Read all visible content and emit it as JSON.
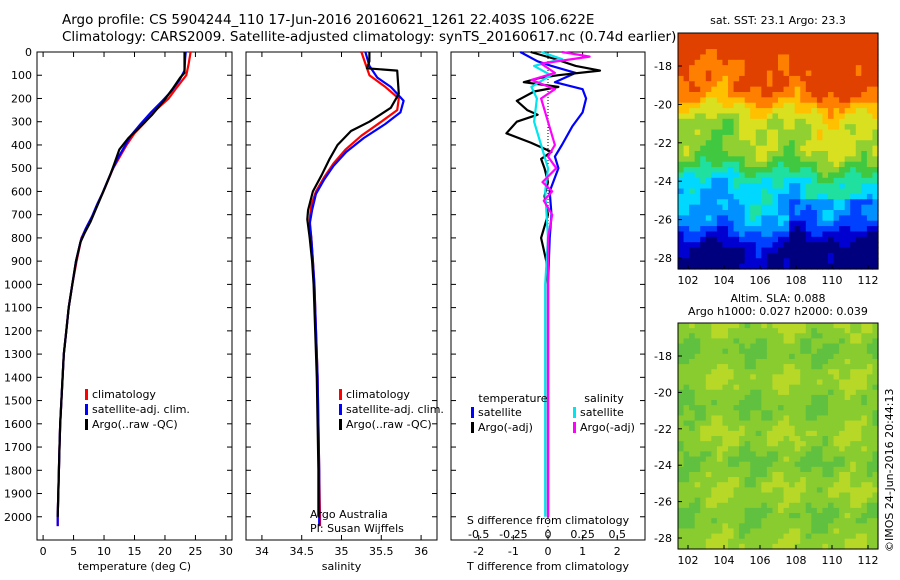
{
  "header": {
    "line1": "Argo profile: CS 5904244_110 17-Jun-2016 20160621_1261 22.403S 106.622E",
    "line2": "Climatology: CARS2009. Satellite-adjusted climatology: synTS_20160617.nc (0.74d earlier)"
  },
  "stamp": "©IMOS 24-Jun-2016 20:44:13",
  "colors": {
    "climatology": "#ff0000",
    "satellite": "#0000ff",
    "argo": "#000000",
    "sat_diff": "#00e5ee",
    "argo_adj": "#ff00ff"
  },
  "chart_data": [
    {
      "type": "line",
      "id": "temperature",
      "xlabel": "temperature (deg C)",
      "xlim": [
        -1,
        31
      ],
      "xticks": [
        0,
        5,
        10,
        15,
        20,
        25,
        30
      ],
      "ylim": [
        2100,
        0
      ],
      "yticks": [
        0,
        100,
        200,
        300,
        400,
        500,
        600,
        700,
        800,
        900,
        1000,
        1100,
        1200,
        1300,
        1400,
        1500,
        1600,
        1700,
        1800,
        1900,
        2000
      ],
      "series": [
        {
          "name": "climatology",
          "color": "#ff0000",
          "points": [
            [
              24.2,
              0
            ],
            [
              23.9,
              50
            ],
            [
              23.5,
              100
            ],
            [
              22.0,
              150
            ],
            [
              20.6,
              200
            ],
            [
              18.5,
              250
            ],
            [
              16.8,
              300
            ],
            [
              15.0,
              350
            ],
            [
              13.7,
              400
            ],
            [
              12.6,
              450
            ],
            [
              11.5,
              500
            ],
            [
              10.7,
              550
            ],
            [
              9.9,
              600
            ],
            [
              9.0,
              650
            ],
            [
              8.2,
              700
            ],
            [
              7.2,
              750
            ],
            [
              6.3,
              800
            ],
            [
              5.5,
              900
            ],
            [
              4.8,
              1000
            ],
            [
              4.2,
              1100
            ],
            [
              3.8,
              1200
            ],
            [
              3.4,
              1300
            ],
            [
              3.2,
              1400
            ],
            [
              3.0,
              1500
            ],
            [
              2.8,
              1600
            ],
            [
              2.7,
              1700
            ],
            [
              2.6,
              1800
            ],
            [
              2.5,
              1900
            ],
            [
              2.4,
              2000
            ],
            [
              2.4,
              2040
            ]
          ]
        },
        {
          "name": "satellite-adj. clim.",
          "color": "#0000ff",
          "points": [
            [
              23.4,
              0
            ],
            [
              23.3,
              30
            ],
            [
              23.2,
              80
            ],
            [
              22.4,
              120
            ],
            [
              21.0,
              170
            ],
            [
              19.6,
              210
            ],
            [
              17.7,
              260
            ],
            [
              16.0,
              310
            ],
            [
              14.4,
              360
            ],
            [
              13.3,
              410
            ],
            [
              12.2,
              460
            ],
            [
              11.3,
              510
            ],
            [
              10.5,
              560
            ],
            [
              9.7,
              610
            ],
            [
              8.8,
              660
            ],
            [
              8.0,
              710
            ],
            [
              7.0,
              760
            ],
            [
              6.2,
              810
            ],
            [
              5.4,
              900
            ],
            [
              4.8,
              1000
            ],
            [
              4.2,
              1100
            ],
            [
              3.8,
              1200
            ],
            [
              3.4,
              1300
            ],
            [
              3.2,
              1400
            ],
            [
              3.0,
              1500
            ],
            [
              2.8,
              1600
            ],
            [
              2.7,
              1700
            ],
            [
              2.6,
              1800
            ],
            [
              2.5,
              1900
            ],
            [
              2.4,
              2000
            ],
            [
              2.4,
              2040
            ]
          ]
        },
        {
          "name": "Argo(..raw -QC)",
          "color": "#000000",
          "points": [
            [
              23.2,
              0
            ],
            [
              23.2,
              90
            ],
            [
              22.5,
              110
            ],
            [
              21.2,
              160
            ],
            [
              19.8,
              210
            ],
            [
              17.9,
              270
            ],
            [
              15.6,
              330
            ],
            [
              14.0,
              370
            ],
            [
              12.5,
              420
            ],
            [
              11.7,
              480
            ],
            [
              11.0,
              530
            ],
            [
              10.2,
              580
            ],
            [
              9.4,
              630
            ],
            [
              8.6,
              680
            ],
            [
              7.8,
              730
            ],
            [
              6.8,
              780
            ],
            [
              6.1,
              820
            ],
            [
              5.4,
              900
            ],
            [
              4.8,
              1000
            ],
            [
              4.2,
              1100
            ],
            [
              3.8,
              1200
            ],
            [
              3.4,
              1300
            ],
            [
              3.2,
              1400
            ],
            [
              3.0,
              1500
            ],
            [
              2.8,
              1600
            ],
            [
              2.7,
              1700
            ],
            [
              2.6,
              1800
            ],
            [
              2.5,
              1900
            ],
            [
              2.4,
              2000
            ]
          ]
        }
      ],
      "legend": [
        "climatology",
        "satellite-adj. clim.",
        "Argo(..raw -QC)"
      ]
    },
    {
      "type": "line",
      "id": "salinity",
      "xlabel": "salinity",
      "xlim": [
        33.8,
        36.2
      ],
      "xticks": [
        34,
        34.5,
        35,
        35.5,
        36
      ],
      "ylim": [
        2100,
        0
      ],
      "series": [
        {
          "name": "climatology",
          "color": "#ff0000",
          "points": [
            [
              35.25,
              0
            ],
            [
              35.3,
              50
            ],
            [
              35.35,
              100
            ],
            [
              35.55,
              150
            ],
            [
              35.72,
              200
            ],
            [
              35.7,
              250
            ],
            [
              35.5,
              300
            ],
            [
              35.25,
              360
            ],
            [
              35.05,
              420
            ],
            [
              34.9,
              480
            ],
            [
              34.78,
              540
            ],
            [
              34.68,
              600
            ],
            [
              34.62,
              660
            ],
            [
              34.6,
              720
            ],
            [
              34.62,
              800
            ],
            [
              34.64,
              900
            ],
            [
              34.66,
              1000
            ],
            [
              34.68,
              1200
            ],
            [
              34.7,
              1400
            ],
            [
              34.71,
              1600
            ],
            [
              34.72,
              1800
            ],
            [
              34.73,
              2000
            ],
            [
              34.73,
              2040
            ]
          ]
        },
        {
          "name": "satellite-adj. clim.",
          "color": "#0000ff",
          "points": [
            [
              35.3,
              0
            ],
            [
              35.35,
              60
            ],
            [
              35.45,
              110
            ],
            [
              35.62,
              150
            ],
            [
              35.78,
              210
            ],
            [
              35.74,
              260
            ],
            [
              35.55,
              310
            ],
            [
              35.28,
              370
            ],
            [
              35.06,
              430
            ],
            [
              34.9,
              490
            ],
            [
              34.78,
              550
            ],
            [
              34.68,
              610
            ],
            [
              34.63,
              680
            ],
            [
              34.6,
              740
            ],
            [
              34.62,
              800
            ],
            [
              34.64,
              900
            ],
            [
              34.66,
              1000
            ],
            [
              34.68,
              1200
            ],
            [
              34.7,
              1400
            ],
            [
              34.71,
              1600
            ],
            [
              34.72,
              1800
            ],
            [
              34.72,
              2000
            ],
            [
              34.72,
              2040
            ]
          ]
        },
        {
          "name": "Argo(..raw -QC)",
          "color": "#000000",
          "points": [
            [
              35.35,
              0
            ],
            [
              35.35,
              40
            ],
            [
              35.32,
              70
            ],
            [
              35.7,
              80
            ],
            [
              35.72,
              180
            ],
            [
              35.62,
              240
            ],
            [
              35.35,
              300
            ],
            [
              35.12,
              340
            ],
            [
              34.95,
              400
            ],
            [
              34.85,
              460
            ],
            [
              34.75,
              530
            ],
            [
              34.64,
              600
            ],
            [
              34.58,
              680
            ],
            [
              34.57,
              720
            ],
            [
              34.6,
              800
            ],
            [
              34.63,
              900
            ],
            [
              34.65,
              1000
            ],
            [
              34.67,
              1200
            ],
            [
              34.69,
              1400
            ],
            [
              34.7,
              1600
            ],
            [
              34.71,
              1800
            ],
            [
              34.71,
              2000
            ]
          ]
        }
      ],
      "legend": [
        "climatology",
        "satellite-adj. clim.",
        "Argo(..raw -QC)"
      ],
      "annotation": [
        "Argo Australia",
        "PI: Susan Wijffels"
      ]
    },
    {
      "type": "line",
      "id": "difference",
      "xlabel": "T difference from climatology",
      "xlim": [
        -2.8,
        2.8
      ],
      "xticks": [
        -2,
        -1,
        0,
        1,
        2
      ],
      "top_label": "S difference from climatology",
      "top_ticks": [
        "-0.5",
        "-0.25",
        "0",
        "0.25",
        "0.5"
      ],
      "top_tick_values": [
        -0.5,
        -0.25,
        0,
        0.25,
        0.5
      ],
      "s_scale": 4,
      "ylim": [
        2100,
        0
      ],
      "series": [
        {
          "name": "temperature satellite",
          "color": "#0000ff",
          "points": [
            [
              -0.8,
              0
            ],
            [
              -0.3,
              40
            ],
            [
              0.1,
              60
            ],
            [
              0.8,
              90
            ],
            [
              0.2,
              130
            ],
            [
              1.0,
              160
            ],
            [
              1.1,
              200
            ],
            [
              1.0,
              260
            ],
            [
              0.7,
              320
            ],
            [
              0.4,
              400
            ],
            [
              0.2,
              450
            ],
            [
              0.3,
              500
            ],
            [
              0.05,
              600
            ],
            [
              0.1,
              700
            ],
            [
              0.05,
              800
            ],
            [
              0,
              1000
            ],
            [
              0,
              2000
            ]
          ]
        },
        {
          "name": "temperature Argo(-adj)",
          "color": "#000000",
          "points": [
            [
              -0.5,
              0
            ],
            [
              0.2,
              30
            ],
            [
              0.8,
              60
            ],
            [
              1.5,
              80
            ],
            [
              0.3,
              100
            ],
            [
              -0.2,
              110
            ],
            [
              -0.7,
              130
            ],
            [
              0.3,
              150
            ],
            [
              -0.4,
              170
            ],
            [
              -0.9,
              210
            ],
            [
              -0.6,
              250
            ],
            [
              -0.3,
              270
            ],
            [
              -0.9,
              300
            ],
            [
              -1.2,
              350
            ],
            [
              -0.5,
              390
            ],
            [
              -0.2,
              410
            ],
            [
              0.1,
              430
            ],
            [
              -0.2,
              460
            ],
            [
              -0.1,
              500
            ],
            [
              0.0,
              560
            ],
            [
              -0.1,
              620
            ],
            [
              0.0,
              700
            ],
            [
              -0.2,
              800
            ],
            [
              -0.05,
              900
            ],
            [
              0,
              1000
            ],
            [
              0,
              2000
            ]
          ]
        },
        {
          "name": "salinity satellite",
          "color": "#00e5ee",
          "points": [
            [
              -0.05,
              0
            ],
            [
              0.1,
              30
            ],
            [
              -0.1,
              60
            ],
            [
              0.02,
              100
            ],
            [
              -0.12,
              150
            ],
            [
              -0.08,
              200
            ],
            [
              -0.1,
              300
            ],
            [
              -0.05,
              400
            ],
            [
              0.0,
              500
            ],
            [
              -0.02,
              600
            ],
            [
              0.0,
              800
            ],
            [
              -0.02,
              1000
            ],
            [
              -0.02,
              2000
            ]
          ]
        },
        {
          "name": "salinity Argo(-adj)",
          "color": "#ff00ff",
          "points": [
            [
              0.1,
              0
            ],
            [
              0.3,
              20
            ],
            [
              -0.05,
              50
            ],
            [
              0.05,
              90
            ],
            [
              -0.12,
              120
            ],
            [
              0.05,
              160
            ],
            [
              -0.05,
              200
            ],
            [
              0.0,
              300
            ],
            [
              0.05,
              400
            ],
            [
              0.0,
              450
            ],
            [
              0.06,
              500
            ],
            [
              -0.04,
              560
            ],
            [
              0.03,
              600
            ],
            [
              -0.03,
              640
            ],
            [
              0.03,
              700
            ],
            [
              0.0,
              800
            ],
            [
              0,
              1000
            ],
            [
              0,
              2000
            ]
          ]
        }
      ],
      "legend_headers": [
        "temperature",
        "salinity"
      ],
      "legend_left": [
        "satellite",
        "Argo(-adj)"
      ],
      "legend_right": [
        "satellite",
        "Argo(-adj)"
      ]
    }
  ],
  "maps": [
    {
      "id": "sst",
      "title": "sat. SST: 23.1 Argo: 23.3",
      "xticks": [
        "102",
        "104",
        "106",
        "108",
        "110",
        "112"
      ],
      "yticks": [
        "-18",
        "-20",
        "-22",
        "-24",
        "-26",
        "-28"
      ]
    },
    {
      "id": "sla",
      "title_line1": "Altim. SLA: 0.088",
      "title_line2": "Argo h1000: 0.027 h2000: 0.039",
      "xticks": [
        "102",
        "104",
        "106",
        "108",
        "110",
        "112"
      ],
      "yticks": [
        "-18",
        "-20",
        "-22",
        "-24",
        "-26",
        "-28"
      ]
    }
  ]
}
